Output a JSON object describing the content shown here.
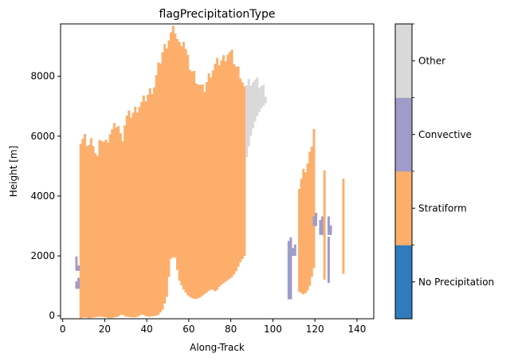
{
  "chart_data": {
    "type": "heatmap",
    "title": "flagPrecipitationType",
    "xlabel": "Along-Track",
    "ylabel": "Height [m]",
    "xlim": [
      -1,
      148
    ],
    "ylim": [
      -100,
      9750
    ],
    "xticks": [
      0,
      20,
      40,
      60,
      80,
      100,
      120,
      140
    ],
    "yticks": [
      0,
      2000,
      4000,
      6000,
      8000
    ],
    "categories": [
      "No Precipitation",
      "Stratiform",
      "Convective",
      "Other"
    ],
    "category_colors": [
      "#2f7bbd",
      "#fdae6b",
      "#a09cc9",
      "#d9d9d9"
    ],
    "regions": [
      {
        "category": "Stratiform",
        "x_start": 8,
        "x_end": 87,
        "top": [
          5800,
          5900,
          5700,
          5900,
          5200,
          6000,
          5700,
          6100,
          6200,
          6500,
          5800,
          6600,
          6700,
          6800,
          7000,
          7100,
          7300,
          7500,
          7700,
          8300,
          8800,
          9100,
          9400,
          9600,
          9000,
          9300,
          8600,
          8200,
          8000,
          7700,
          7500,
          7900,
          8200,
          8400,
          8500,
          8600,
          8800,
          8700,
          8300,
          8100,
          7600
        ],
        "bottom": [
          -80,
          -50,
          -80,
          -60,
          -40,
          -30,
          -50,
          -80,
          -60,
          -40,
          50,
          -30,
          -40,
          -60,
          -30,
          50,
          -20,
          -30,
          -10,
          30,
          200,
          600,
          1900,
          2000,
          1200,
          900,
          700,
          600,
          550,
          600,
          700,
          800,
          900,
          800,
          1000,
          1100,
          1200,
          1300,
          1500,
          1800,
          2000
        ]
      },
      {
        "category": "Other",
        "x_start": 87,
        "x_end": 97,
        "top": [
          7700,
          7900,
          7800,
          7700,
          7500
        ],
        "bottom": [
          5300,
          6100,
          6600,
          6900,
          7100
        ]
      },
      {
        "category": "Convective",
        "x_start": 6,
        "x_end": 8,
        "top": [
          1800
        ],
        "bottom": [
          1500
        ]
      },
      {
        "category": "Convective",
        "x_start": 6,
        "x_end": 8,
        "top": [
          1150
        ],
        "bottom": [
          900
        ]
      },
      {
        "category": "Stratiform",
        "x_start": 112,
        "x_end": 120,
        "top": [
          4300,
          4800,
          5200,
          6300
        ],
        "bottom": [
          800,
          700,
          900,
          1600
        ]
      },
      {
        "category": "Convective",
        "x_start": 107,
        "x_end": 109,
        "top": [
          2500
        ],
        "bottom": [
          550
        ]
      },
      {
        "category": "Convective",
        "x_start": 109,
        "x_end": 111,
        "top": [
          2200
        ],
        "bottom": [
          2000
        ]
      },
      {
        "category": "Convective",
        "x_start": 119,
        "x_end": 121,
        "top": [
          3500
        ],
        "bottom": [
          3000
        ]
      },
      {
        "category": "Convective",
        "x_start": 122,
        "x_end": 124,
        "top": [
          3200
        ],
        "bottom": [
          2700
        ]
      },
      {
        "category": "Stratiform",
        "x_start": 124,
        "x_end": 125,
        "top": [
          4800
        ],
        "bottom": [
          1200
        ]
      },
      {
        "category": "Convective",
        "x_start": 126,
        "x_end": 128,
        "top": [
          3200
        ],
        "bottom": [
          2700
        ]
      },
      {
        "category": "Convective",
        "x_start": 126,
        "x_end": 127,
        "top": [
          2700
        ],
        "bottom": [
          1100
        ]
      },
      {
        "category": "Stratiform",
        "x_start": 133,
        "x_end": 134,
        "top": [
          4400
        ],
        "bottom": [
          1400
        ]
      }
    ]
  }
}
